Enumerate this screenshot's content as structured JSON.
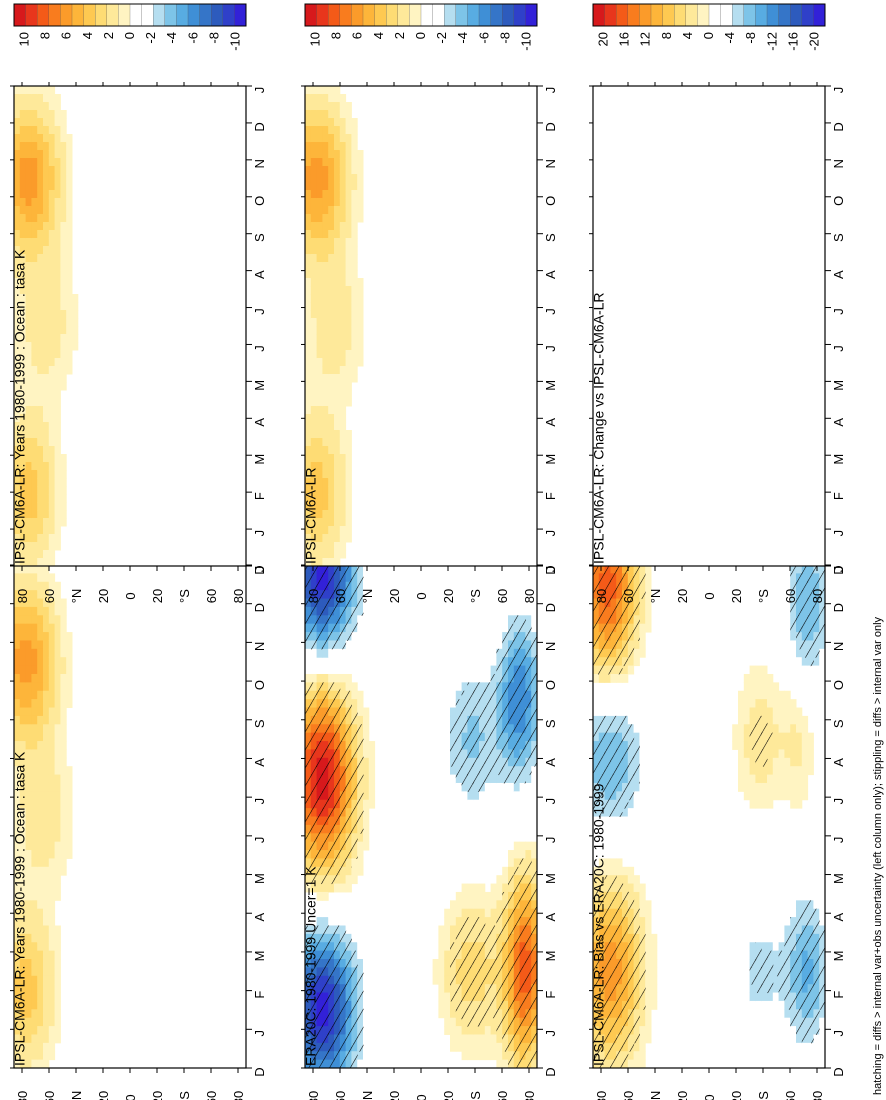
{
  "footnote": "hatching = diffs > internal var+obs uncertainty (left column only); stippling = diffs > internal var only",
  "palettes": {
    "warm": [
      "#d7191c",
      "#e8361c",
      "#f45a18",
      "#f97c1e",
      "#fb9b2a",
      "#fdb53a",
      "#fec951",
      "#fedc74",
      "#fee99a",
      "#fff4c2",
      "#ffffff"
    ],
    "cool": [
      "#ffffff",
      "#ffffff",
      "#b5def0",
      "#7dc4e8",
      "#58ace2",
      "#3f8fd6",
      "#3575c8",
      "#2d5bbd",
      "#2f40c9",
      "#3221d8"
    ]
  },
  "month_labels": [
    "D",
    "J",
    "F",
    "M",
    "A",
    "M",
    "J",
    "J",
    "A",
    "S",
    "O",
    "N",
    "D",
    "J"
  ],
  "lat_labels": [
    "80",
    "60",
    "°N",
    "20",
    "0",
    "20",
    "°S",
    "60",
    "80"
  ],
  "chart_data": [
    {
      "type": "heatmap",
      "title": "IPSL-CM6A-LR: Years 1980-1999 : Ocean : tasa K",
      "x": "month (D to J)",
      "y": "latitude 80N to 80S",
      "colorbar_ticks": [
        "10",
        "8",
        "6",
        "4",
        "2",
        "0",
        "-2",
        "-4",
        "-6",
        "-8",
        "-10"
      ],
      "features": [
        {
          "kind": "warm",
          "lat_center": 72,
          "lat_halfwidth": 22,
          "month": 10.5,
          "peak": 6
        },
        {
          "kind": "warm",
          "lat_center": 72,
          "lat_halfwidth": 20,
          "month": 2,
          "peak": 4
        },
        {
          "kind": "warm",
          "lat_center": 60,
          "lat_halfwidth": 22,
          "month": 6.5,
          "peak": 2
        }
      ]
    },
    {
      "type": "heatmap",
      "title": "IPSL-CM6A-LR: Years 1980-1999 : Ocean : tasa K",
      "x": "month (D to J)",
      "y": "latitude 80N to 80S",
      "colorbar_ticks": [
        "10",
        "8",
        "6",
        "4",
        "2",
        "0",
        "-2",
        "-4",
        "-6",
        "-8",
        "-10"
      ],
      "features": [
        {
          "kind": "warm",
          "lat_center": 70,
          "lat_halfwidth": 22,
          "month": 10.5,
          "peak": 6
        },
        {
          "kind": "warm",
          "lat_center": 70,
          "lat_halfwidth": 20,
          "month": 2,
          "peak": 4
        },
        {
          "kind": "warm",
          "lat_center": 58,
          "lat_halfwidth": 22,
          "month": 6.5,
          "peak": 2
        }
      ]
    },
    {
      "type": "heatmap",
      "title": "ERA20C: 1980-1999 Uncer=1 K",
      "x": "month (D to J)",
      "y": "latitude 80N to 80S",
      "colorbar_ticks": [
        "10",
        "8",
        "6",
        "4",
        "2",
        "0",
        "-2",
        "-4",
        "-6",
        "-8",
        "-10"
      ],
      "features": [
        {
          "kind": "warm",
          "lat_center": 68,
          "lat_halfwidth": 22,
          "month": 7.5,
          "peak": 10
        },
        {
          "kind": "cool",
          "lat_center": 68,
          "lat_halfwidth": 22,
          "month": 1.5,
          "peak": -10
        },
        {
          "kind": "cool",
          "lat_center": 68,
          "lat_halfwidth": 22,
          "month": 12.8,
          "peak": -10
        },
        {
          "kind": "warm",
          "lat_center": -35,
          "lat_halfwidth": 22,
          "month": 2.5,
          "peak": 3
        },
        {
          "kind": "cool",
          "lat_center": -35,
          "lat_halfwidth": 20,
          "month": 8.5,
          "peak": -3
        },
        {
          "kind": "warm",
          "lat_center": -72,
          "lat_halfwidth": 14,
          "month": 2.5,
          "peak": 8
        },
        {
          "kind": "cool",
          "lat_center": -68,
          "lat_halfwidth": 14,
          "month": 9.5,
          "peak": -6
        }
      ]
    },
    {
      "type": "heatmap",
      "title": "IPSL-CM6A-LR",
      "x": "month (D to J)",
      "y": "latitude 80N to 80S",
      "colorbar_ticks": [
        "10",
        "8",
        "6",
        "4",
        "2",
        "0",
        "-2",
        "-4",
        "-6",
        "-8",
        "-10"
      ],
      "features": [
        {
          "kind": "warm",
          "lat_center": 72,
          "lat_halfwidth": 22,
          "month": 10.5,
          "peak": 6
        },
        {
          "kind": "warm",
          "lat_center": 72,
          "lat_halfwidth": 20,
          "month": 2,
          "peak": 4
        },
        {
          "kind": "warm",
          "lat_center": 60,
          "lat_halfwidth": 22,
          "month": 6.5,
          "peak": 2
        }
      ]
    },
    {
      "type": "heatmap",
      "title": "IPSL-CM6A-LR: Bias vs ERA20C: 1980-1999",
      "x": "month (D to J)",
      "y": "latitude 80N to 80S",
      "colorbar_ticks": [
        "20",
        "16",
        "12",
        "8",
        "4",
        "0",
        "-4",
        "-8",
        "-12",
        "-16",
        "-20"
      ],
      "features": [
        {
          "kind": "warm",
          "lat_center": 68,
          "lat_halfwidth": 22,
          "month": 2.5,
          "peak": 12
        },
        {
          "kind": "warm",
          "lat_center": 70,
          "lat_halfwidth": 20,
          "month": 12.5,
          "peak": 16
        },
        {
          "kind": "cool",
          "lat_center": 68,
          "lat_halfwidth": 22,
          "month": 8,
          "peak": -8
        },
        {
          "kind": "cool",
          "lat_center": -35,
          "lat_halfwidth": 20,
          "month": 2.5,
          "peak": -4
        },
        {
          "kind": "warm",
          "lat_center": -35,
          "lat_halfwidth": 18,
          "month": 8.5,
          "peak": 4
        },
        {
          "kind": "cool",
          "lat_center": -68,
          "lat_halfwidth": 14,
          "month": 2.5,
          "peak": -8
        },
        {
          "kind": "cool",
          "lat_center": -68,
          "lat_halfwidth": 14,
          "month": 12,
          "peak": -8
        },
        {
          "kind": "warm",
          "lat_center": -62,
          "lat_halfwidth": 12,
          "month": 8.5,
          "peak": 3
        }
      ]
    },
    {
      "type": "heatmap",
      "title": "IPSL-CM6A-LR: Change vs IPSL-CM6A-LR",
      "x": "month (D to J)",
      "y": "latitude 80N to 80S",
      "colorbar_ticks": [
        "20",
        "16",
        "12",
        "8",
        "4",
        "0",
        "-4",
        "-8",
        "-12",
        "-16",
        "-20"
      ],
      "features": []
    }
  ]
}
